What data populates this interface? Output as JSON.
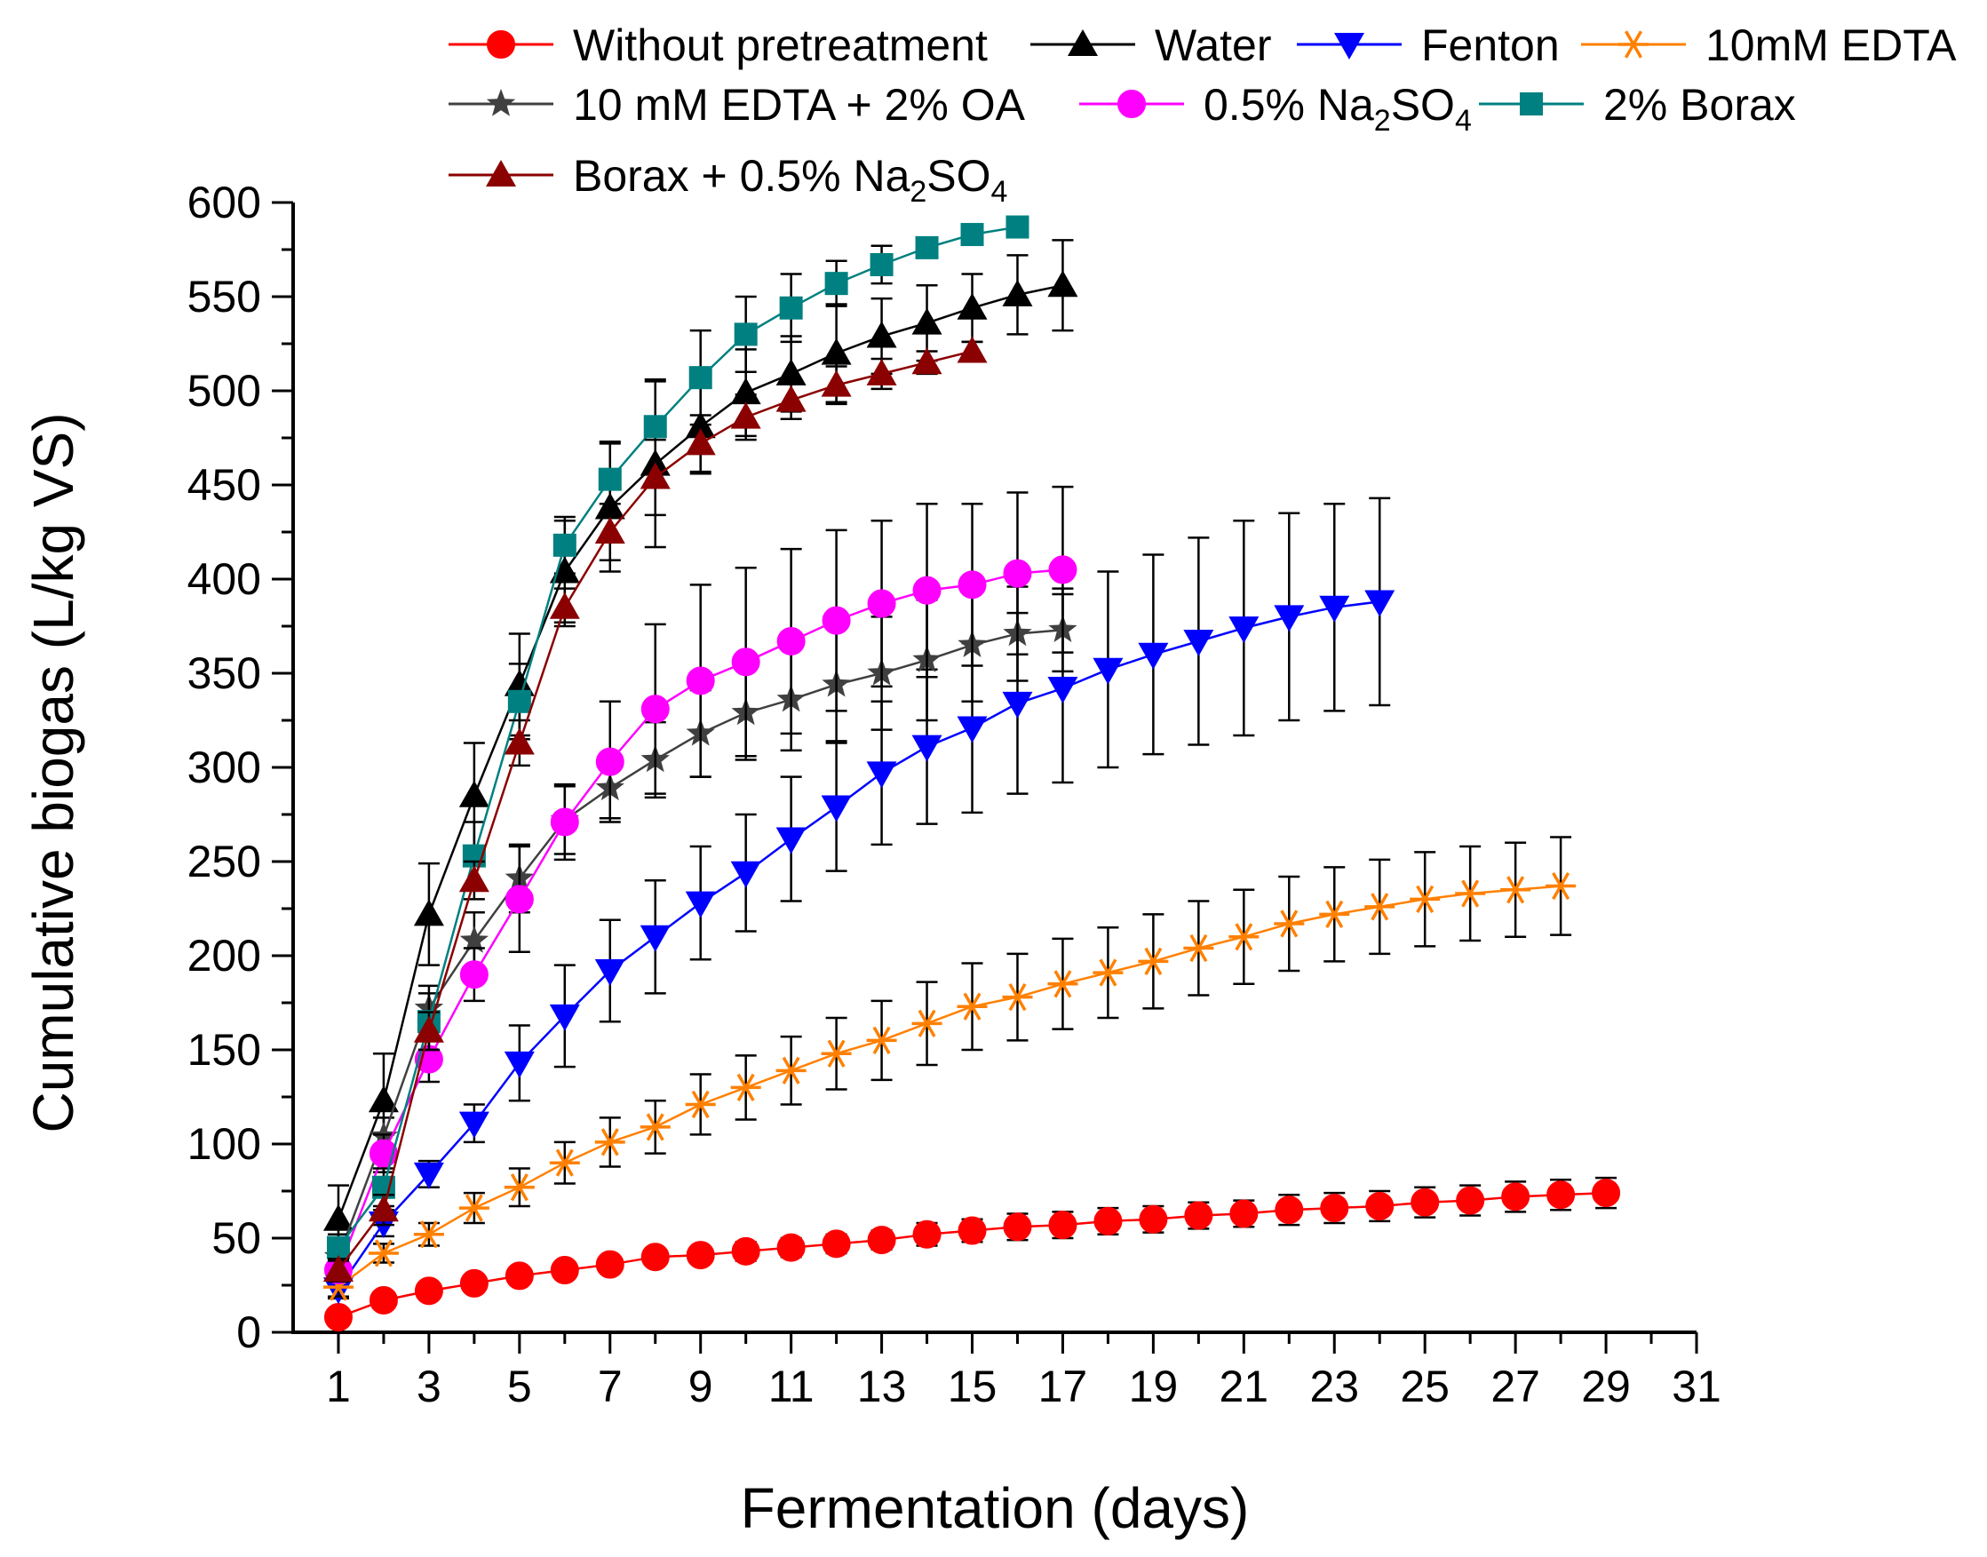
{
  "chart_data": {
    "type": "line",
    "title": "",
    "xlabel": "Fermentation (days)",
    "ylabel": "Cumulative biogas (L/kg VS)",
    "xlim": [
      0,
      31
    ],
    "ylim": [
      0,
      600
    ],
    "x_ticks": [
      1,
      3,
      5,
      7,
      9,
      11,
      13,
      15,
      17,
      19,
      21,
      23,
      25,
      27,
      29,
      31
    ],
    "y_ticks": [
      0,
      50,
      100,
      150,
      200,
      250,
      300,
      350,
      400,
      450,
      500,
      550,
      600
    ],
    "grid": false,
    "legend_position": "top",
    "series": [
      {
        "name": "Without pretreatment",
        "color": "#ff0000",
        "marker": "circle",
        "x": [
          1,
          2,
          3,
          4,
          5,
          6,
          7,
          8,
          9,
          10,
          11,
          12,
          13,
          14,
          15,
          16,
          17,
          18,
          19,
          20,
          21,
          22,
          23,
          24,
          25,
          26,
          27,
          28,
          29
        ],
        "values": [
          8,
          17,
          22,
          26,
          30,
          33,
          36,
          40,
          41,
          43,
          45,
          47,
          49,
          52,
          54,
          56,
          57,
          59,
          60,
          62,
          63,
          65,
          66,
          67,
          69,
          70,
          72,
          73,
          74
        ],
        "errors": [
          3,
          4,
          4,
          4,
          4,
          4,
          4,
          4,
          4,
          5,
          5,
          5,
          5,
          6,
          6,
          7,
          7,
          7,
          7,
          7,
          7,
          8,
          8,
          8,
          8,
          8,
          8,
          8,
          8
        ]
      },
      {
        "name": "Water",
        "color": "#000000",
        "marker": "triangle-up",
        "x": [
          1,
          2,
          3,
          4,
          5,
          6,
          7,
          8,
          9,
          10,
          11,
          12,
          13,
          14,
          15,
          16,
          17
        ],
        "values": [
          60,
          123,
          222,
          285,
          344,
          404,
          438,
          461,
          481,
          499,
          509,
          520,
          529,
          536,
          544,
          551,
          556
        ],
        "errors": [
          18,
          25,
          27,
          28,
          27,
          27,
          34,
          44,
          25,
          23,
          20,
          26,
          20,
          20,
          18,
          21,
          24
        ]
      },
      {
        "name": "Fenton",
        "color": "#0000ff",
        "marker": "triangle-down",
        "x": [
          1,
          2,
          3,
          4,
          5,
          6,
          7,
          8,
          9,
          10,
          11,
          12,
          13,
          14,
          15,
          16,
          17,
          18,
          19,
          20,
          21,
          22,
          23,
          24
        ],
        "values": [
          23,
          58,
          84,
          111,
          143,
          168,
          192,
          210,
          228,
          244,
          262,
          279,
          297,
          311,
          321,
          334,
          342,
          352,
          360,
          367,
          374,
          380,
          385,
          388
        ],
        "errors": [
          5,
          7,
          7,
          10,
          20,
          27,
          27,
          30,
          30,
          31,
          33,
          34,
          38,
          41,
          45,
          48,
          50,
          52,
          53,
          55,
          57,
          55,
          55,
          55
        ]
      },
      {
        "name": "10mM EDTA",
        "color": "#ff8000",
        "marker": "asterisk",
        "x": [
          1,
          2,
          3,
          4,
          5,
          6,
          7,
          8,
          9,
          10,
          11,
          12,
          13,
          14,
          15,
          16,
          17,
          18,
          19,
          20,
          21,
          22,
          23,
          24,
          25,
          26,
          27,
          28
        ],
        "values": [
          24,
          42,
          52,
          66,
          77,
          90,
          101,
          109,
          121,
          130,
          139,
          148,
          155,
          164,
          173,
          178,
          185,
          191,
          197,
          204,
          210,
          217,
          222,
          226,
          230,
          233,
          235,
          237
        ],
        "errors": [
          5,
          5,
          6,
          8,
          10,
          11,
          13,
          14,
          16,
          17,
          18,
          19,
          21,
          22,
          23,
          23,
          24,
          24,
          25,
          25,
          25,
          25,
          25,
          25,
          25,
          25,
          25,
          26
        ]
      },
      {
        "name": "10 mM EDTA + 2% OA",
        "color": "#404040",
        "marker": "star",
        "x": [
          1,
          2,
          3,
          4,
          5,
          6,
          7,
          8,
          9,
          10,
          11,
          12,
          13,
          14,
          15,
          16,
          17
        ],
        "values": [
          40,
          104,
          172,
          208,
          241,
          272,
          289,
          304,
          318,
          329,
          336,
          344,
          350,
          357,
          365,
          371,
          373
        ],
        "errors": [
          8,
          10,
          12,
          15,
          18,
          18,
          16,
          20,
          23,
          25,
          27,
          30,
          30,
          32,
          30,
          25,
          22
        ]
      },
      {
        "name": "0.5% Na2SO4",
        "name_main": "0.5% Na",
        "name_sub": "2",
        "name_tail": "SO",
        "name_sub2": "4",
        "color": "#ff00ff",
        "marker": "circle",
        "x": [
          1,
          2,
          3,
          4,
          5,
          6,
          7,
          8,
          9,
          10,
          11,
          12,
          13,
          14,
          15,
          16,
          17
        ],
        "values": [
          33,
          95,
          145,
          190,
          230,
          271,
          303,
          331,
          346,
          356,
          367,
          378,
          387,
          394,
          397,
          403,
          405
        ],
        "errors": [
          6,
          10,
          12,
          14,
          28,
          20,
          32,
          45,
          51,
          50,
          49,
          48,
          44,
          46,
          43,
          43,
          44
        ]
      },
      {
        "name": "2% Borax",
        "color": "#008080",
        "marker": "square",
        "x": [
          1,
          2,
          3,
          4,
          5,
          6,
          7,
          8,
          9,
          10,
          11,
          12,
          13,
          14,
          15,
          16
        ],
        "values": [
          45,
          77,
          165,
          253,
          335,
          418,
          453,
          481,
          507,
          530,
          544,
          557,
          567,
          576,
          583,
          587
        ],
        "errors": [
          7,
          10,
          15,
          18,
          20,
          15,
          20,
          25,
          25,
          20,
          18,
          12,
          10,
          5,
          5,
          4
        ]
      },
      {
        "name": "Borax + 0.5% Na2SO4",
        "name_main": "Borax + 0.5% Na",
        "name_sub": "2",
        "name_tail": "SO",
        "name_sub2": "4",
        "color": "#8b0000",
        "marker": "triangle-up",
        "x": [
          1,
          2,
          3,
          4,
          5,
          6,
          7,
          8,
          9,
          10,
          11,
          12,
          13,
          14,
          15
        ],
        "values": [
          33,
          65,
          160,
          240,
          313,
          385,
          425,
          454,
          472,
          486,
          495,
          503,
          509,
          515,
          521
        ],
        "errors": [
          6,
          8,
          10,
          10,
          12,
          10,
          15,
          20,
          15,
          12,
          10,
          10,
          8,
          6,
          5
        ]
      }
    ]
  }
}
